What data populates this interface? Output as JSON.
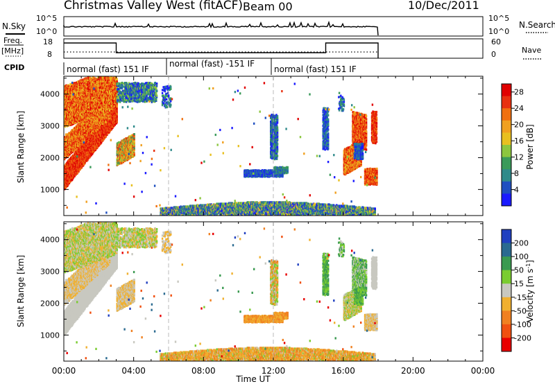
{
  "header": {
    "site_label": "Christmas Valley West (fitACF)",
    "beam_label": "Beam 00",
    "date_label": "10/Dec/2011"
  },
  "colors": {
    "power_scale": [
      "#1a1aff",
      "#1f4fc0",
      "#2f8a8a",
      "#3a9a5a",
      "#8cc63f",
      "#e8c020",
      "#f0a020",
      "#f07010",
      "#e83010",
      "#e00000"
    ],
    "velocity_scale": [
      "#2040c0",
      "#2a6a90",
      "#3a9a50",
      "#7acc30",
      "#c8c8c0",
      "#f0b030",
      "#f08020",
      "#f05010",
      "#e80000"
    ]
  },
  "strip_panels": {
    "noise": {
      "label": "N.Sky",
      "right_label": "N.Search",
      "left_ticks": [
        "10^5",
        "10^0"
      ],
      "right_ticks": [
        "10^5",
        "10^0"
      ]
    },
    "freq": {
      "label_line1": "Freq.",
      "label_line2": "[MHz]",
      "right_label": "Nave",
      "left_ticks": [
        "18",
        "8"
      ],
      "right_ticks": [
        "60",
        "0"
      ]
    },
    "cpid": {
      "label": "CPID",
      "segments": [
        "normal (fast) 151 IF",
        "normal (fast) -151 IF",
        "normal (fast) 151 IF"
      ]
    }
  },
  "chart_data": [
    {
      "type": "heatmap",
      "title": "Power",
      "ylabel": "Slant Range [km]",
      "xlabel": "Time UT",
      "x_ticks": [
        "00:00",
        "04:00",
        "08:00",
        "12:00",
        "16:00",
        "20:00",
        "00:00"
      ],
      "x_range_hours": [
        0,
        24
      ],
      "y_ticks": [
        1000,
        2000,
        3000,
        4000
      ],
      "ylim": [
        180,
        4560
      ],
      "colorbar_label": "Power [dB]",
      "colorbar_ticks": [
        4,
        8,
        12,
        16,
        20,
        24,
        28
      ],
      "colorbar_range": [
        0,
        30
      ],
      "dashed_markers_hours": [
        6,
        12
      ],
      "data_end_hours": 18
    },
    {
      "type": "heatmap",
      "title": "Velocity",
      "ylabel": "Slant Range [km]",
      "xlabel": "Time UT",
      "x_ticks": [
        "00:00",
        "04:00",
        "08:00",
        "12:00",
        "16:00",
        "20:00",
        "00:00"
      ],
      "x_range_hours": [
        0,
        24
      ],
      "y_ticks": [
        1000,
        2000,
        3000,
        4000
      ],
      "ylim": [
        180,
        4560
      ],
      "colorbar_label": "Velocity [m s",
      "colorbar_label_sup": "-1",
      "colorbar_label_end": "]",
      "colorbar_ticks": [
        "200",
        "100",
        "50",
        "15",
        "-15",
        "-50",
        "-100",
        "-200"
      ],
      "dashed_markers_hours": [
        6,
        12
      ],
      "data_end_hours": 18
    }
  ]
}
